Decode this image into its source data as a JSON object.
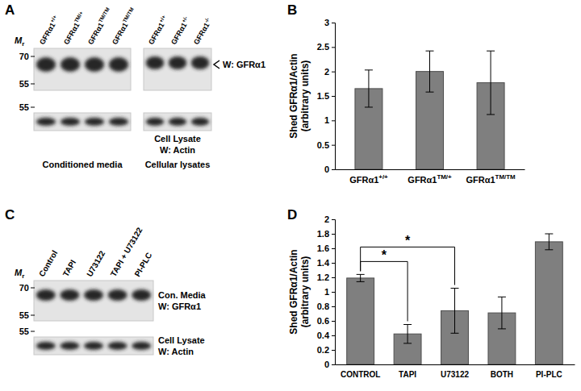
{
  "panel_labels": [
    "A",
    "B",
    "C",
    "D"
  ],
  "blot_a": {
    "mr_symbol": "M",
    "mr_subscript": "r",
    "top_ticks": [
      70,
      55
    ],
    "bottom_ticks": [
      55
    ],
    "left_lanes": [
      "GFRα1+/+",
      "GFRα1TM/+",
      "GFRα1TM/TM",
      "GFRα1TM/TM"
    ],
    "right_lanes": [
      "GFRα1+/+",
      "GFRα1+/-",
      "GFRα1-/-"
    ],
    "top_label": "W: GFRα1",
    "bottom_labels": [
      "Cell Lysate",
      "W: Actin"
    ],
    "left_caption": "Conditioned media",
    "right_caption": "Cellular lysates"
  },
  "blot_c": {
    "mr_symbol": "M",
    "mr_subscript": "r",
    "top_ticks": [
      70,
      55
    ],
    "bottom_ticks": [
      55
    ],
    "lanes": [
      "Control",
      "TAPI",
      "U73122",
      "TAPI + U73122",
      "PI-PLC"
    ],
    "top_labels": [
      "Con. Media",
      "W: GFRα1"
    ],
    "bottom_labels": [
      "Cell Lysate",
      "W: Actin"
    ]
  },
  "chart_data": [
    {
      "type": "bar",
      "ylabel": [
        "Shed GFRα1/Actin",
        "(arbitrary units)"
      ],
      "categories": [
        "GFRα1+/+",
        "GFRα1TM/+",
        "GFRα1TM/TM"
      ],
      "values": [
        1.65,
        2.0,
        1.77
      ],
      "errors": [
        0.38,
        0.42,
        0.65
      ],
      "color": "#7f7f7f",
      "ylim": [
        0,
        3
      ],
      "yticks": [
        0,
        0.5,
        1,
        1.5,
        2,
        2.5,
        3
      ]
    },
    {
      "type": "bar",
      "ylabel": [
        "Shed GFRα1/Actin",
        "(arbitrary units)"
      ],
      "categories": [
        "CONTROL",
        "TAPI",
        "U73122",
        "BOTH",
        "PI-PLC"
      ],
      "values": [
        1.19,
        0.42,
        0.74,
        0.71,
        1.69
      ],
      "errors": [
        0.05,
        0.13,
        0.31,
        0.22,
        0.11
      ],
      "color": "#7f7f7f",
      "ylim": [
        0,
        2
      ],
      "yticks": [
        0,
        0.2,
        0.4,
        0.6,
        0.8,
        1,
        1.2,
        1.4,
        1.6,
        1.8,
        2
      ],
      "significance": [
        {
          "from": "CONTROL",
          "to": "TAPI",
          "label": "*"
        },
        {
          "from": "CONTROL",
          "to": "U73122",
          "label": "*"
        }
      ]
    }
  ]
}
